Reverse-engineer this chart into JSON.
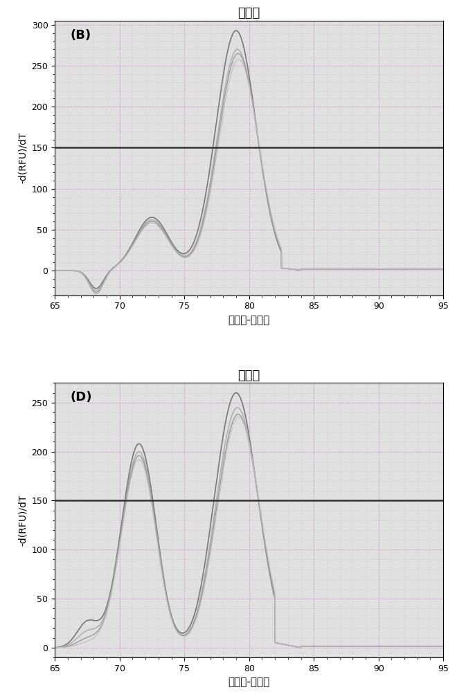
{
  "panel_B": {
    "label": "(B)",
    "title": "熔融峰",
    "xlabel": "温度，-摄氏度",
    "ylabel": "-d(RFU)/dT",
    "xlim": [
      65,
      95
    ],
    "ylim": [
      -30,
      305
    ],
    "yticks": [
      0,
      50,
      100,
      150,
      200,
      250,
      300
    ],
    "xticks": [
      65,
      70,
      75,
      80,
      85,
      90,
      95
    ],
    "hline_y": 150,
    "curve_params": [
      [
        293,
        65,
        -22,
        0.0
      ],
      [
        270,
        62,
        -25,
        0.1
      ],
      [
        265,
        60,
        -27,
        0.15
      ],
      [
        258,
        58,
        -29,
        0.2
      ]
    ],
    "colors": [
      "#777777",
      "#aaaaaa",
      "#999999",
      "#c0c0c0"
    ],
    "linewidths": [
      1.2,
      1.0,
      1.0,
      0.9
    ]
  },
  "panel_D": {
    "label": "(D)",
    "title": "熔融峰",
    "xlabel": "温度，-摄氏度",
    "ylabel": "-d(RFU)/dT",
    "xlim": [
      65,
      95
    ],
    "ylim": [
      -10,
      270
    ],
    "yticks": [
      0,
      50,
      100,
      150,
      200,
      250
    ],
    "xticks": [
      65,
      70,
      75,
      80,
      85,
      90,
      95
    ],
    "hline_y": 150,
    "curve_params": [
      [
        208,
        100,
        260,
        25,
        0.0
      ],
      [
        200,
        101,
        245,
        15,
        0.1
      ],
      [
        196,
        100,
        238,
        8,
        0.15
      ],
      [
        192,
        100,
        235,
        4,
        0.2
      ]
    ],
    "colors": [
      "#777777",
      "#aaaaaa",
      "#999999",
      "#c0c0c0"
    ],
    "linewidths": [
      1.2,
      1.0,
      1.0,
      0.9
    ]
  },
  "bg_color": "#e0e0e0",
  "grid_color_major": "#cc66cc",
  "grid_color_minor": "#cc66cc",
  "hline_color": "#333333",
  "fig_facecolor": "#ffffff"
}
